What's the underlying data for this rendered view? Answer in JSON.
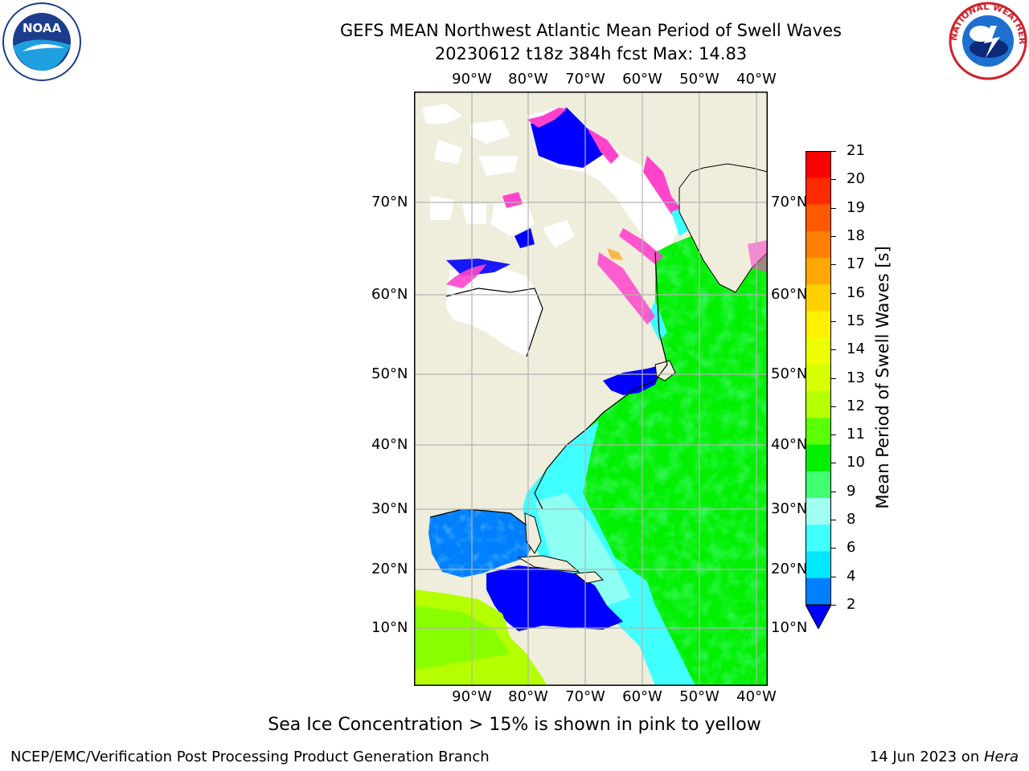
{
  "title": {
    "line1": "GEFS MEAN Northwest Atlantic Mean Period of Swell Waves",
    "line2": "20230612 t18z 384h fcst   Max: 14.83"
  },
  "map": {
    "lon_labels": [
      "90°W",
      "80°W",
      "70°W",
      "60°W",
      "50°W",
      "40°W"
    ],
    "lat_labels": [
      "70°N",
      "60°N",
      "50°N",
      "40°N",
      "30°N",
      "20°N",
      "10°N"
    ],
    "colors": {
      "land": "#efeddb",
      "ice_white": "#ffffff",
      "gridline": "#b4b4b4"
    }
  },
  "colorbar": {
    "label": "Mean Period of Swell Waves [s]",
    "ticks": [
      "21",
      "20",
      "19",
      "18",
      "17",
      "16",
      "15",
      "14",
      "13",
      "12",
      "11",
      "10",
      "9",
      "8",
      "6",
      "4",
      "2"
    ],
    "colors": [
      "#ff0000",
      "#ff2a00",
      "#ff5a00",
      "#ff8000",
      "#ffa800",
      "#ffd000",
      "#fff000",
      "#eeff00",
      "#d8ff00",
      "#b4ff00",
      "#5aff00",
      "#00f000",
      "#40ff70",
      "#a0fff0",
      "#40ffff",
      "#00e8ff",
      "#0080ff"
    ],
    "extend_color": "#0000ff"
  },
  "caption": "Sea Ice Concentration > 15% is shown in pink to yellow",
  "footer": {
    "left": "NCEP/EMC/Verification Post Processing Product Generation Branch",
    "right_prefix": "14 Jun 2023 on ",
    "right_host": "Hera"
  },
  "logos": {
    "noaa_text": "NOAA",
    "nws_text": "NATIONAL WEATHER SERVICE"
  }
}
